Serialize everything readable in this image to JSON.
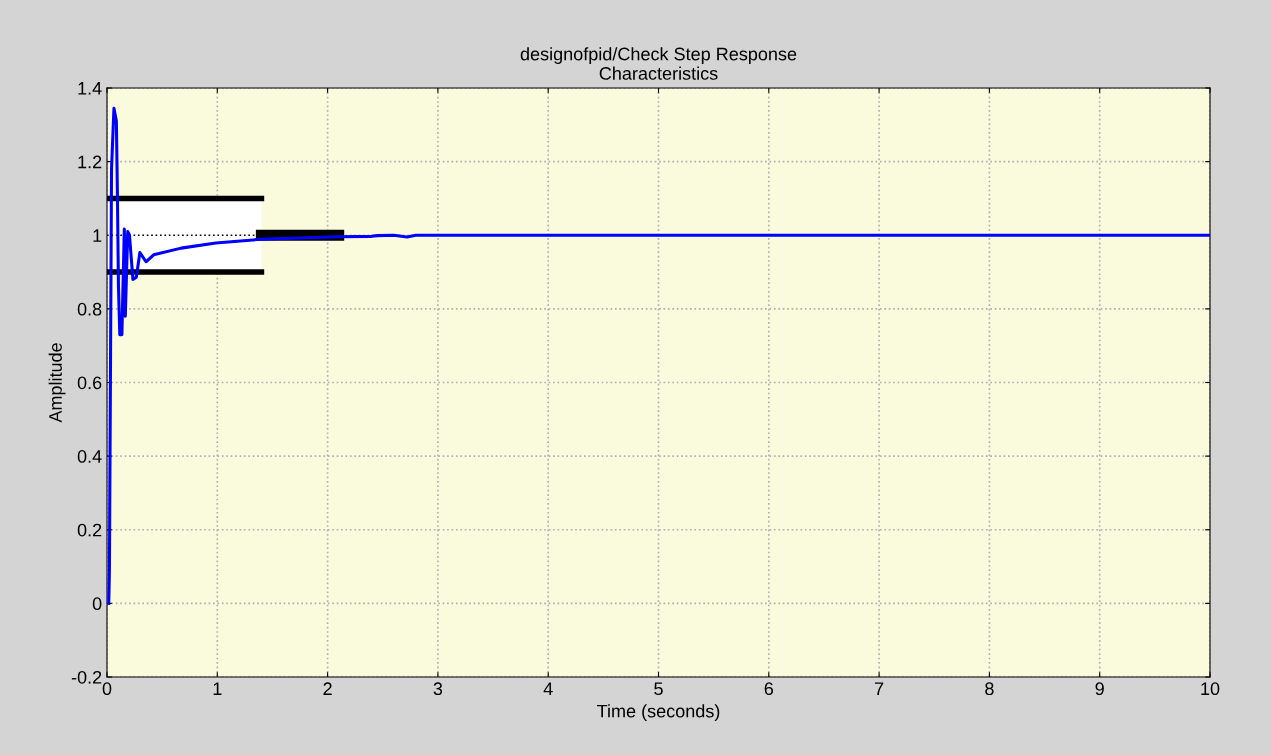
{
  "chart_data": {
    "type": "line",
    "title": "designofpid/Check Step Response\nCharacteristics",
    "xlabel": "Time (seconds)",
    "ylabel": "Amplitude",
    "xlim": [
      0,
      10
    ],
    "xticks": [
      0,
      1,
      2,
      3,
      4,
      5,
      6,
      7,
      8,
      9,
      10
    ],
    "ylim": [
      -0.2,
      1.4
    ],
    "yticks": [
      -0.2,
      0,
      0.2,
      0.4,
      0.6,
      0.8,
      1,
      1.2,
      1.4
    ],
    "grid": true,
    "series": [
      {
        "color": "#000000",
        "line_style": "dotted",
        "x": [
          0,
          1.4
        ],
        "values": [
          1,
          1
        ],
        "lower": [
          0.9,
          0.9
        ],
        "upper": [
          1.1,
          1.1
        ]
      },
      {
        "color": "#000000",
        "line_style": "solid",
        "x": [
          0,
          1.4
        ],
        "values": [
          1.1,
          1.1
        ]
      },
      {
        "color": "#000000",
        "line_style": "solid",
        "x": [
          0,
          1.4
        ],
        "values": [
          0.9,
          0.9
        ]
      },
      {
        "color": "#000000",
        "line_style": "solid",
        "x": [
          1.4,
          2.1
        ],
        "values": [
          1,
          1
        ]
      },
      {
        "color": "#0000ff",
        "line_style": "solid",
        "x": [
          0.016,
          0.022,
          0.032,
          0.041,
          0.063,
          0.085,
          0.094,
          0.104,
          0.116,
          0.135,
          0.157,
          0.166,
          0.188,
          0.204,
          0.235,
          0.266,
          0.298,
          0.354,
          0.423,
          0.673,
          0.986,
          1.392,
          1.8,
          2.1,
          2.4,
          2.45,
          2.6,
          2.72,
          2.8,
          3.5,
          5,
          7,
          10
        ],
        "values": [
          0,
          0.09,
          0.66,
          1.18,
          1.345,
          1.31,
          1.12,
          0.86,
          0.73,
          0.73,
          1.017,
          0.78,
          1.01,
          1.0,
          0.88,
          0.886,
          0.953,
          0.928,
          0.947,
          0.965,
          0.979,
          0.989,
          0.993,
          0.996,
          0.997,
          0.999,
          1.0,
          0.995,
          1.0,
          1.0,
          1.0,
          1.0,
          1.0
        ]
      }
    ]
  }
}
